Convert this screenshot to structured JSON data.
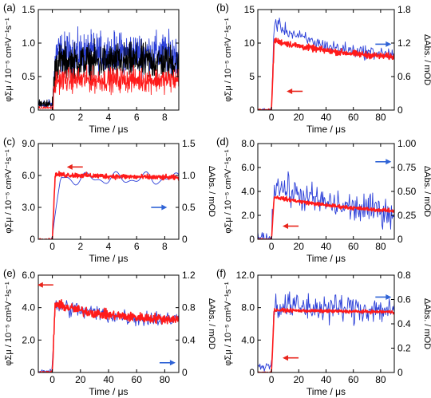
{
  "figure": {
    "width": 540,
    "height": 499
  },
  "colors": {
    "blue": "#2b3fd8",
    "red": "#ff1a1a",
    "black": "#000000",
    "arrow_red": "#e8251c",
    "arrow_blue": "#2f63d6"
  },
  "chart_data": [
    {
      "id": "a",
      "panel_label": "(a)",
      "type": "line",
      "xlabel": "Time / μs",
      "ylabel": "φΣμ / 10⁻⁵ cm²V⁻¹s⁻¹",
      "xlim": [
        -1,
        9
      ],
      "ylim": [
        0,
        1.5
      ],
      "xticks": [
        0,
        2,
        4,
        6,
        8
      ],
      "yticks": [
        0,
        0.5,
        1.0,
        1.5
      ],
      "yticklabels": [
        "0",
        "0.5",
        "1.0",
        "1.5"
      ],
      "series": [
        {
          "color": "blue",
          "shape": "rise-flat",
          "pre": 0.05,
          "level": 0.85,
          "decay": 0.0,
          "noise": 0.22,
          "n": 520,
          "t0": 0
        },
        {
          "color": "black",
          "shape": "rise-flat",
          "pre": 0.05,
          "level": 0.72,
          "decay": 0.0,
          "noise": 0.2,
          "n": 520,
          "t0": 0
        },
        {
          "color": "red",
          "shape": "rise-flat",
          "pre": 0.02,
          "level": 0.45,
          "decay": 0.0,
          "noise": 0.13,
          "n": 520,
          "t0": 0
        }
      ]
    },
    {
      "id": "b",
      "panel_label": "(b)",
      "type": "line",
      "xlabel": "Time / μs",
      "ylabel": "φΣμ / 10⁻⁵ cm²V⁻¹s⁻¹",
      "ylabel_right": "ΔAbs. / mOD",
      "xlim": [
        -10,
        90
      ],
      "ylim": [
        0,
        15
      ],
      "ylim_right": [
        0,
        1.8
      ],
      "xticks": [
        0,
        20,
        40,
        60,
        80
      ],
      "yticks": [
        0,
        5,
        10,
        15
      ],
      "yticks_right": [
        0,
        0.6,
        1.2,
        1.8
      ],
      "yticklabels_right": [
        "0",
        "0.6",
        "1.2",
        "1.8"
      ],
      "series": [
        {
          "color": "blue",
          "axis": "right",
          "shape": "rise-decay",
          "pre": 0.0,
          "peak": 1.6,
          "tail": 0.95,
          "tau": 35,
          "noise": 0.09,
          "n": 190,
          "t0": 0
        },
        {
          "color": "red",
          "axis": "left",
          "shape": "rise-decay",
          "pre": 0.0,
          "peak": 10.5,
          "tail": 7.2,
          "tau": 60,
          "noise": 0.35,
          "n": 420,
          "t0": 0
        }
      ],
      "arrows": [
        {
          "dir": "left",
          "color": "arrow_red",
          "x": 17,
          "y": 2.8,
          "axis": "left"
        },
        {
          "dir": "right",
          "color": "arrow_blue",
          "x": 82,
          "y": 1.18,
          "axis": "right"
        }
      ]
    },
    {
      "id": "c",
      "panel_label": "(c)",
      "type": "line",
      "xlabel": "Time / μs",
      "ylabel": "φΣμ / 10⁻⁵ cm²V⁻¹s⁻¹",
      "ylabel_right": "ΔAbs. / mOD",
      "xlim": [
        -1,
        9
      ],
      "ylim": [
        0,
        9.0
      ],
      "ylim_right": [
        0,
        1.5
      ],
      "xticks": [
        0,
        2,
        4,
        6,
        8
      ],
      "yticks": [
        0,
        3.0,
        6.0,
        9.0
      ],
      "yticks_right": [
        0,
        0.5,
        1.0,
        1.5
      ],
      "yticklabels": [
        "0",
        "3.0",
        "6.0",
        "9.0"
      ],
      "yticklabels_right": [
        "0",
        "0.5",
        "1.0",
        "1.5"
      ],
      "series": [
        {
          "color": "blue",
          "axis": "right",
          "shape": "smooth-osc",
          "pre": 0.0,
          "level": 0.95,
          "noise": 0.07,
          "n": 110,
          "t0": 0
        },
        {
          "color": "red",
          "axis": "left",
          "shape": "rise-decay",
          "pre": 0.0,
          "peak": 6.1,
          "tail": 5.5,
          "tau": 12,
          "noise": 0.18,
          "n": 420,
          "t0": 0
        }
      ],
      "arrows": [
        {
          "dir": "left",
          "color": "arrow_red",
          "x": 1.6,
          "y": 6.8,
          "axis": "left"
        },
        {
          "dir": "right",
          "color": "arrow_blue",
          "x": 7.6,
          "y": 0.5,
          "axis": "right"
        }
      ]
    },
    {
      "id": "d",
      "panel_label": "(d)",
      "type": "line",
      "xlabel": "Time / μs",
      "ylabel": "φΣμ / 10⁻⁵ cm²V⁻¹s⁻¹",
      "ylabel_right": "ΔAbs. / mOD",
      "xlim": [
        -10,
        90
      ],
      "ylim": [
        0,
        8.0
      ],
      "ylim_right": [
        0,
        1.0
      ],
      "xticks": [
        0,
        20,
        40,
        60,
        80
      ],
      "yticks": [
        0,
        2.0,
        4.0,
        6.0,
        8.0
      ],
      "yticks_right": [
        0,
        0.25,
        0.5,
        0.75,
        1.0
      ],
      "yticklabels": [
        "0",
        "2.0",
        "4.0",
        "6.0",
        "8.0"
      ],
      "yticklabels_right": [
        "0",
        "0.25",
        "0.50",
        "0.75",
        "1.00"
      ],
      "series": [
        {
          "color": "blue",
          "axis": "right",
          "shape": "rise-decay",
          "pre": 0.02,
          "peak": 0.6,
          "tail": 0.25,
          "tau": 40,
          "noise": 0.12,
          "n": 190,
          "t0": 0
        },
        {
          "color": "red",
          "axis": "left",
          "shape": "rise-decay",
          "pre": 0.0,
          "peak": 3.6,
          "tail": 1.9,
          "tau": 70,
          "noise": 0.12,
          "n": 420,
          "t0": 0
        }
      ],
      "arrows": [
        {
          "dir": "left",
          "color": "arrow_red",
          "x": 14,
          "y": 1.1,
          "axis": "left"
        },
        {
          "dir": "right",
          "color": "arrow_blue",
          "x": 82,
          "y": 0.81,
          "axis": "right"
        }
      ]
    },
    {
      "id": "e",
      "panel_label": "(e)",
      "type": "line",
      "xlabel": "Time / μs",
      "ylabel": "φΣμ / 10⁻⁵ cm²V⁻¹s⁻¹",
      "ylabel_right": "ΔAbs. / mOD",
      "xlim": [
        -10,
        90
      ],
      "ylim": [
        0,
        6.0
      ],
      "ylim_right": [
        0,
        1.2
      ],
      "xticks": [
        0,
        20,
        40,
        60,
        80
      ],
      "yticks": [
        0,
        2.0,
        4.0,
        6.0
      ],
      "yticks_right": [
        0,
        0.4,
        0.8,
        1.2
      ],
      "yticklabels": [
        "0",
        "2.0",
        "4.0",
        "6.0"
      ],
      "yticklabels_right": [
        "0",
        "0.4",
        "0.8",
        "1.2"
      ],
      "series": [
        {
          "color": "blue",
          "axis": "right",
          "shape": "rise-decay",
          "pre": 0.02,
          "peak": 0.85,
          "tail": 0.63,
          "tau": 40,
          "noise": 0.08,
          "n": 190,
          "t0": 0
        },
        {
          "color": "red",
          "axis": "left",
          "shape": "rise-decay",
          "pre": 0.0,
          "peak": 4.3,
          "tail": 3.2,
          "tau": 35,
          "noise": 0.22,
          "n": 420,
          "t0": 0
        }
      ],
      "arrows": [
        {
          "dir": "left",
          "color": "arrow_red",
          "x": -5,
          "y": 5.4,
          "axis": "left"
        },
        {
          "dir": "right",
          "color": "arrow_blue",
          "x": 82,
          "y": 0.12,
          "axis": "right"
        }
      ]
    },
    {
      "id": "f",
      "panel_label": "(f)",
      "type": "line",
      "xlabel": "Time / μs",
      "ylabel": "φΣμ / 10⁻⁵ cm²V⁻¹s⁻¹",
      "ylabel_right": "ΔAbs. / mOD",
      "xlim": [
        -10,
        90
      ],
      "ylim": [
        0,
        12.0
      ],
      "ylim_right": [
        0,
        0.8
      ],
      "xticks": [
        0,
        20,
        40,
        60,
        80
      ],
      "yticks": [
        0,
        4.0,
        8.0,
        12.0
      ],
      "yticks_right": [
        0,
        0.2,
        0.4,
        0.6,
        0.8
      ],
      "yticklabels": [
        "0",
        "4.0",
        "8.0",
        "12.0"
      ],
      "yticklabels_right": [
        "0",
        "0.2",
        "0.4",
        "0.6",
        "0.8"
      ],
      "series": [
        {
          "color": "blue",
          "axis": "right",
          "shape": "rise-decay",
          "pre": 0.05,
          "peak": 0.55,
          "tail": 0.5,
          "tau": 80,
          "noise": 0.09,
          "n": 190,
          "t0": 0
        },
        {
          "color": "red",
          "axis": "left",
          "shape": "rise-decay",
          "pre": 0.0,
          "peak": 7.7,
          "tail": 7.3,
          "tau": 100,
          "noise": 0.15,
          "n": 420,
          "t0": 0
        }
      ],
      "arrows": [
        {
          "dir": "left",
          "color": "arrow_red",
          "x": 14,
          "y": 1.8,
          "axis": "left"
        },
        {
          "dir": "right",
          "color": "arrow_blue",
          "x": 82,
          "y": 0.62,
          "axis": "right"
        }
      ]
    }
  ]
}
